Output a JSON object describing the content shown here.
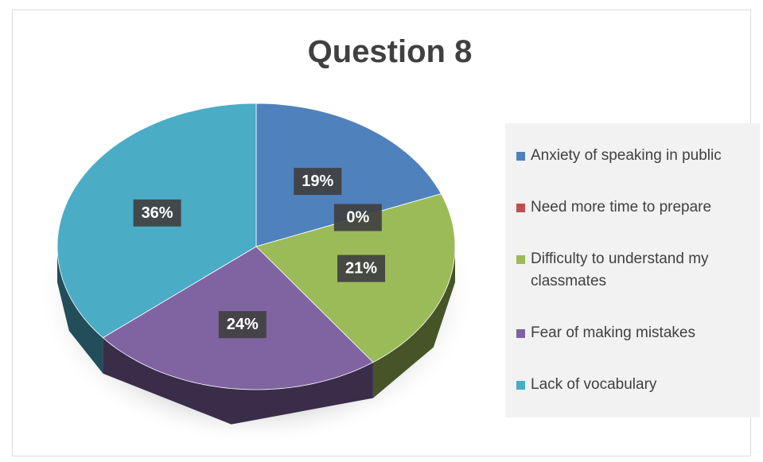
{
  "chart_data": {
    "type": "pie",
    "title": "Question 8",
    "categories": [
      "Anxiety of speaking in public",
      "Need more time to prepare",
      "Difficulty to understand my classmates",
      "Fear of making mistakes",
      "Lack of vocabulary"
    ],
    "values": [
      19,
      0,
      21,
      24,
      36
    ],
    "value_labels": [
      "19%",
      "0%",
      "21%",
      "24%",
      "36%"
    ],
    "colors": [
      "#4f81bd",
      "#c0504d",
      "#9bbb59",
      "#8064a2",
      "#4bacc6"
    ],
    "legend": "right"
  }
}
